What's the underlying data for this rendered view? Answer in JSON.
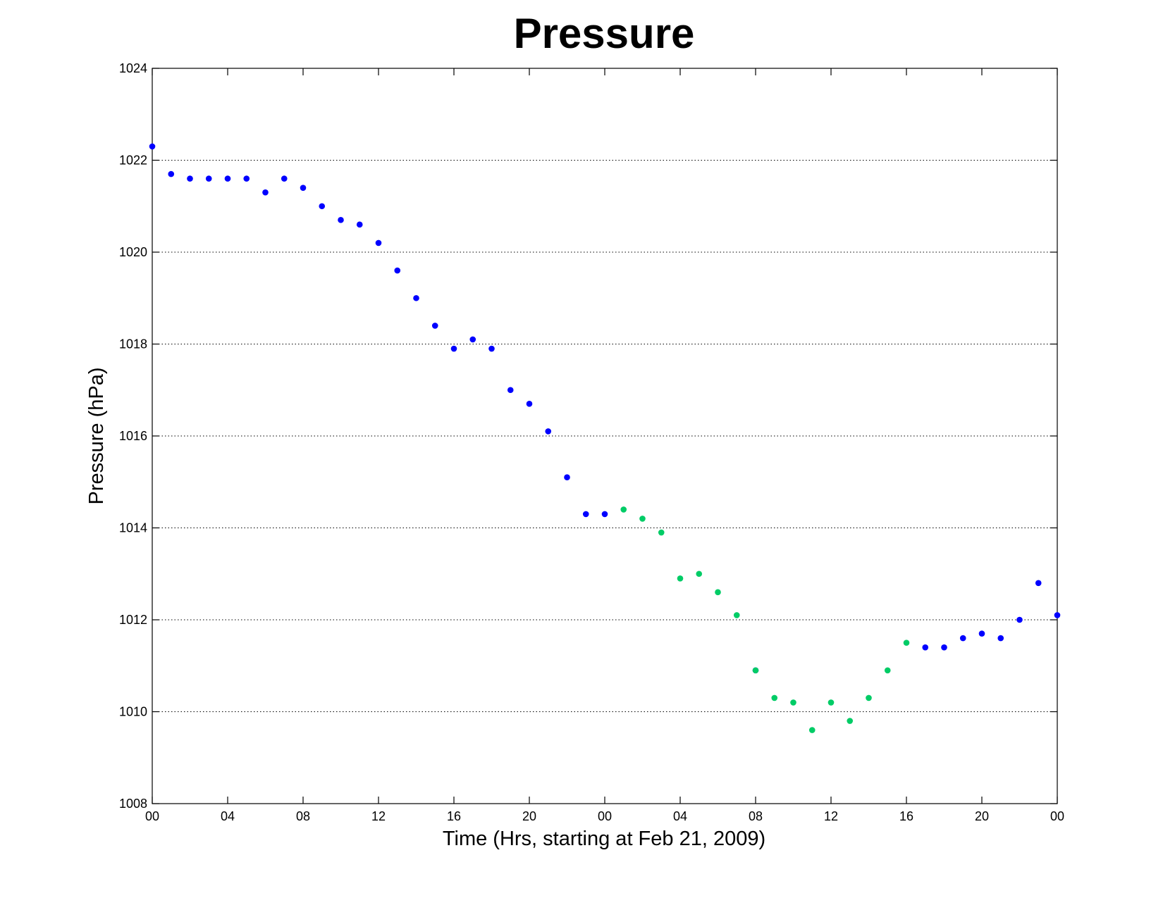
{
  "chart_data": {
    "type": "scatter",
    "title": "Pressure",
    "xlabel": "Time (Hrs, starting at Feb 21, 2009)",
    "ylabel": "Pressure (hPa)",
    "xlim": [
      0,
      48
    ],
    "ylim": [
      1008,
      1024
    ],
    "grid": "horizontal dotted",
    "x_ticks": [
      {
        "value": 0,
        "label": "00"
      },
      {
        "value": 4,
        "label": "04"
      },
      {
        "value": 8,
        "label": "08"
      },
      {
        "value": 12,
        "label": "12"
      },
      {
        "value": 16,
        "label": "16"
      },
      {
        "value": 20,
        "label": "20"
      },
      {
        "value": 24,
        "label": "00"
      },
      {
        "value": 28,
        "label": "04"
      },
      {
        "value": 32,
        "label": "08"
      },
      {
        "value": 36,
        "label": "12"
      },
      {
        "value": 40,
        "label": "16"
      },
      {
        "value": 44,
        "label": "20"
      },
      {
        "value": 48,
        "label": "00"
      }
    ],
    "y_ticks": [
      1008,
      1010,
      1012,
      1014,
      1016,
      1018,
      1020,
      1022,
      1024
    ],
    "series": [
      {
        "color": "#0000ff",
        "points": [
          [
            0,
            1022.3
          ],
          [
            1,
            1021.7
          ],
          [
            2,
            1021.6
          ],
          [
            3,
            1021.6
          ],
          [
            4,
            1021.6
          ],
          [
            5,
            1021.6
          ],
          [
            6,
            1021.3
          ],
          [
            7,
            1021.6
          ],
          [
            8,
            1021.4
          ],
          [
            9,
            1021.0
          ],
          [
            10,
            1020.7
          ],
          [
            11,
            1020.6
          ],
          [
            12,
            1020.2
          ],
          [
            13,
            1019.6
          ],
          [
            14,
            1019.0
          ],
          [
            15,
            1018.4
          ],
          [
            16,
            1017.9
          ],
          [
            17,
            1018.1
          ],
          [
            18,
            1017.9
          ],
          [
            19,
            1017.0
          ],
          [
            20,
            1016.7
          ],
          [
            21,
            1016.1
          ],
          [
            22,
            1015.1
          ],
          [
            23,
            1014.3
          ],
          [
            24,
            1014.3
          ],
          [
            32,
            1010.9
          ],
          [
            41,
            1011.4
          ],
          [
            42,
            1011.4
          ],
          [
            43,
            1011.6
          ],
          [
            44,
            1011.7
          ],
          [
            45,
            1011.6
          ],
          [
            46,
            1012.0
          ],
          [
            47,
            1012.8
          ],
          [
            48,
            1012.1
          ]
        ]
      },
      {
        "color": "#00cc66",
        "points": [
          [
            25,
            1014.4
          ],
          [
            26,
            1014.2
          ],
          [
            27,
            1013.9
          ],
          [
            28,
            1012.9
          ],
          [
            29,
            1013.0
          ],
          [
            30,
            1012.6
          ],
          [
            31,
            1012.1
          ],
          [
            32,
            1010.9
          ],
          [
            33,
            1010.3
          ],
          [
            34,
            1010.2
          ],
          [
            35,
            1009.6
          ],
          [
            36,
            1010.2
          ],
          [
            37,
            1009.8
          ],
          [
            38,
            1010.3
          ],
          [
            39,
            1010.9
          ],
          [
            40,
            1011.5
          ]
        ]
      }
    ]
  }
}
